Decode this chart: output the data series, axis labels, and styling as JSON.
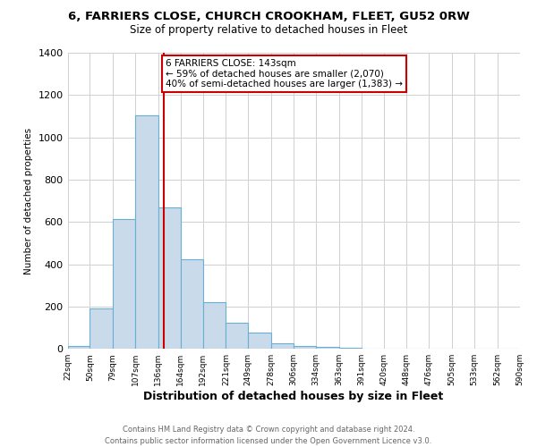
{
  "title": "6, FARRIERS CLOSE, CHURCH CROOKHAM, FLEET, GU52 0RW",
  "subtitle": "Size of property relative to detached houses in Fleet",
  "xlabel": "Distribution of detached houses by size in Fleet",
  "ylabel": "Number of detached properties",
  "bar_color": "#c9daea",
  "bar_edge_color": "#6aafd4",
  "bin_edges": [
    22,
    50,
    79,
    107,
    136,
    164,
    192,
    221,
    249,
    278,
    306,
    334,
    363,
    391,
    420,
    448,
    476,
    505,
    533,
    562,
    590
  ],
  "bar_heights": [
    15,
    193,
    615,
    1105,
    670,
    425,
    220,
    125,
    75,
    28,
    15,
    10,
    5,
    2,
    1,
    1,
    0,
    0,
    0,
    0
  ],
  "property_line_x": 143,
  "property_line_color": "#cc0000",
  "annotation_line1": "6 FARRIERS CLOSE: 143sqm",
  "annotation_line2": "← 59% of detached houses are smaller (2,070)",
  "annotation_line3": "40% of semi-detached houses are larger (1,383) →",
  "annotation_box_color": "#ffffff",
  "annotation_box_edge_color": "#cc0000",
  "ylim": [
    0,
    1400
  ],
  "yticks": [
    0,
    200,
    400,
    600,
    800,
    1000,
    1200,
    1400
  ],
  "tick_labels": [
    "22sqm",
    "50sqm",
    "79sqm",
    "107sqm",
    "136sqm",
    "164sqm",
    "192sqm",
    "221sqm",
    "249sqm",
    "278sqm",
    "306sqm",
    "334sqm",
    "363sqm",
    "391sqm",
    "420sqm",
    "448sqm",
    "476sqm",
    "505sqm",
    "533sqm",
    "562sqm",
    "590sqm"
  ],
  "footer_line1": "Contains HM Land Registry data © Crown copyright and database right 2024.",
  "footer_line2": "Contains public sector information licensed under the Open Government Licence v3.0.",
  "background_color": "#ffffff",
  "grid_color": "#d0d0d0",
  "title_fontsize": 9.5,
  "subtitle_fontsize": 8.5,
  "xlabel_fontsize": 9,
  "ylabel_fontsize": 7.5,
  "footer_fontsize": 6,
  "tick_fontsize": 6.5,
  "ytick_fontsize": 8
}
